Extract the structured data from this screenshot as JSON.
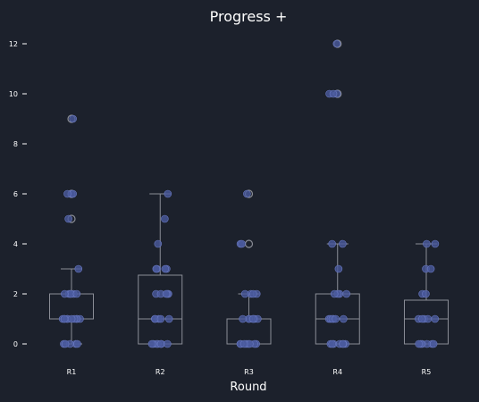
{
  "chart_data": {
    "type": "box",
    "title": "Progress +",
    "xlabel": "Round",
    "ylabel": "",
    "ylim": [
      -0.6,
      12.5
    ],
    "yticks": [
      0,
      2,
      4,
      6,
      8,
      10,
      12
    ],
    "categories": [
      "R1",
      "R2",
      "R3",
      "R4",
      "R5"
    ],
    "colors": {
      "background": "#1c212c",
      "box_edge": "#8a8d96",
      "point_fill": "#4a5a9e",
      "point_edge": "#6b7bc4",
      "axis_text": "#ffffff"
    },
    "boxes": [
      {
        "category": "R1",
        "whisker_low": 0,
        "q1": 1,
        "median": 1,
        "q3": 2,
        "whisker_high": 3,
        "outliers": [
          5,
          6,
          9
        ]
      },
      {
        "category": "R2",
        "whisker_low": 0,
        "q1": 0,
        "median": 1,
        "q3": 2.75,
        "whisker_high": 6,
        "outliers": []
      },
      {
        "category": "R3",
        "whisker_low": 0,
        "q1": 0,
        "median": 0,
        "q3": 1,
        "whisker_high": 2,
        "outliers": [
          4,
          6
        ]
      },
      {
        "category": "R4",
        "whisker_low": 0,
        "q1": 0,
        "median": 1,
        "q3": 2,
        "whisker_high": 4,
        "outliers": [
          10,
          12
        ]
      },
      {
        "category": "R5",
        "whisker_low": 0,
        "q1": 0,
        "median": 1,
        "q3": 1.75,
        "whisker_high": 4,
        "outliers": []
      }
    ],
    "points": [
      {
        "category": "R1",
        "values": [
          0,
          0,
          0,
          0,
          0,
          1,
          1,
          1,
          1,
          1,
          1,
          1,
          1,
          1,
          1,
          2,
          2,
          2,
          2,
          2,
          2,
          3,
          5,
          6,
          6,
          6,
          9
        ]
      },
      {
        "category": "R2",
        "values": [
          0,
          0,
          0,
          0,
          0,
          0,
          0,
          1,
          1,
          1,
          1,
          1,
          2,
          2,
          2,
          2,
          2,
          3,
          3,
          3,
          3,
          4,
          5,
          6
        ]
      },
      {
        "category": "R3",
        "values": [
          0,
          0,
          0,
          0,
          0,
          0,
          0,
          0,
          1,
          1,
          1,
          1,
          1,
          1,
          1,
          2,
          2,
          2,
          2,
          4,
          4,
          6
        ]
      },
      {
        "category": "R4",
        "values": [
          0,
          0,
          0,
          0,
          0,
          0,
          0,
          1,
          1,
          1,
          1,
          1,
          1,
          2,
          2,
          2,
          2,
          3,
          4,
          4,
          10,
          10,
          10,
          12
        ]
      },
      {
        "category": "R5",
        "values": [
          0,
          0,
          0,
          0,
          0,
          0,
          1,
          1,
          1,
          1,
          1,
          2,
          2,
          3,
          3,
          4,
          4
        ]
      }
    ]
  }
}
